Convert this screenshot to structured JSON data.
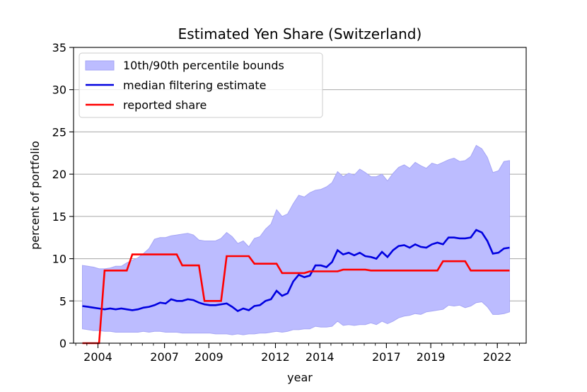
{
  "chart_data": {
    "type": "line",
    "title": "Estimated Yen Share (Switzerland)",
    "xlabel": "year",
    "ylabel": "percent of portfolio",
    "xlim": [
      2002.9,
      2023.3
    ],
    "ylim": [
      0,
      35
    ],
    "yticks": [
      0,
      5,
      10,
      15,
      20,
      25,
      30,
      35
    ],
    "xtick_values": [
      2004,
      2007,
      2009,
      2012,
      2014,
      2017,
      2019,
      2022
    ],
    "xtick_labels": [
      "2004",
      "2007",
      "2009",
      "2012",
      "2014",
      "2017",
      "2019",
      "2022"
    ],
    "grid": "horizontal",
    "legend_position": "top-left",
    "colors": {
      "band": "#bcbcff",
      "band_edge": "#a6a6f5",
      "median": "#0000e0",
      "reported": "#ff0000",
      "grid": "#b0b0b0"
    },
    "legend": [
      {
        "label": "10th/90th percentile bounds",
        "kind": "band"
      },
      {
        "label": "median filtering estimate",
        "kind": "median"
      },
      {
        "label": "reported share",
        "kind": "reported"
      }
    ],
    "series": [
      {
        "kind": "band",
        "x": [
          2003.3,
          2003.55,
          2003.8,
          2004.05,
          2004.3,
          2004.55,
          2004.8,
          2005.05,
          2005.3,
          2005.55,
          2005.8,
          2006.05,
          2006.3,
          2006.55,
          2006.8,
          2007.05,
          2007.3,
          2007.55,
          2007.8,
          2008.05,
          2008.3,
          2008.55,
          2008.8,
          2009.05,
          2009.3,
          2009.55,
          2009.8,
          2010.05,
          2010.3,
          2010.55,
          2010.8,
          2011.05,
          2011.3,
          2011.55,
          2011.8,
          2012.05,
          2012.3,
          2012.55,
          2012.8,
          2013.05,
          2013.3,
          2013.55,
          2013.8,
          2014.05,
          2014.3,
          2014.55,
          2014.8,
          2015.05,
          2015.3,
          2015.55,
          2015.8,
          2016.05,
          2016.3,
          2016.55,
          2016.8,
          2017.05,
          2017.3,
          2017.55,
          2017.8,
          2018.05,
          2018.3,
          2018.55,
          2018.8,
          2019.05,
          2019.3,
          2019.55,
          2019.8,
          2020.05,
          2020.3,
          2020.55,
          2020.8,
          2021.05,
          2021.3,
          2021.55,
          2021.8,
          2022.05,
          2022.3,
          2022.55
        ],
        "lower": [
          1.7,
          1.6,
          1.5,
          1.5,
          1.4,
          1.4,
          1.3,
          1.3,
          1.3,
          1.3,
          1.3,
          1.4,
          1.3,
          1.4,
          1.4,
          1.3,
          1.3,
          1.3,
          1.2,
          1.2,
          1.2,
          1.2,
          1.2,
          1.2,
          1.1,
          1.1,
          1.1,
          1.0,
          1.1,
          1.0,
          1.1,
          1.1,
          1.2,
          1.2,
          1.3,
          1.4,
          1.3,
          1.4,
          1.6,
          1.6,
          1.7,
          1.7,
          2.0,
          1.9,
          1.9,
          2.0,
          2.6,
          2.1,
          2.2,
          2.1,
          2.2,
          2.2,
          2.4,
          2.2,
          2.6,
          2.3,
          2.6,
          3.0,
          3.2,
          3.3,
          3.5,
          3.4,
          3.7,
          3.8,
          3.9,
          4.0,
          4.5,
          4.4,
          4.5,
          4.2,
          4.4,
          4.8,
          4.9,
          4.3,
          3.4,
          3.4,
          3.5,
          3.7
        ],
        "upper": [
          9.2,
          9.1,
          9.0,
          8.8,
          8.8,
          8.9,
          9.1,
          9.1,
          9.5,
          9.8,
          10.1,
          10.6,
          11.2,
          12.3,
          12.5,
          12.5,
          12.7,
          12.8,
          12.9,
          13.0,
          12.8,
          12.2,
          12.1,
          12.1,
          12.1,
          12.4,
          13.1,
          12.6,
          11.8,
          12.1,
          11.4,
          12.4,
          12.6,
          13.5,
          14.1,
          15.8,
          15.0,
          15.3,
          16.5,
          17.5,
          17.3,
          17.8,
          18.1,
          18.2,
          18.5,
          19.0,
          20.3,
          19.7,
          20.1,
          19.9,
          20.6,
          20.2,
          19.7,
          19.7,
          20.0,
          19.2,
          20.1,
          20.8,
          21.1,
          20.7,
          21.4,
          21.0,
          20.7,
          21.3,
          21.1,
          21.4,
          21.7,
          21.9,
          21.5,
          21.6,
          22.1,
          23.4,
          23.0,
          22.0,
          20.2,
          20.4,
          21.5,
          21.6
        ]
      },
      {
        "kind": "median",
        "name": "median filtering estimate",
        "x": [
          2003.3,
          2003.55,
          2003.8,
          2004.05,
          2004.3,
          2004.55,
          2004.8,
          2005.05,
          2005.3,
          2005.55,
          2005.8,
          2006.05,
          2006.3,
          2006.55,
          2006.8,
          2007.05,
          2007.3,
          2007.55,
          2007.8,
          2008.05,
          2008.3,
          2008.55,
          2008.8,
          2009.05,
          2009.3,
          2009.55,
          2009.8,
          2010.05,
          2010.3,
          2010.55,
          2010.8,
          2011.05,
          2011.3,
          2011.55,
          2011.8,
          2012.05,
          2012.3,
          2012.55,
          2012.8,
          2013.05,
          2013.3,
          2013.55,
          2013.8,
          2014.05,
          2014.3,
          2014.55,
          2014.8,
          2015.05,
          2015.3,
          2015.55,
          2015.8,
          2016.05,
          2016.3,
          2016.55,
          2016.8,
          2017.05,
          2017.3,
          2017.55,
          2017.8,
          2018.05,
          2018.3,
          2018.55,
          2018.8,
          2019.05,
          2019.3,
          2019.55,
          2019.8,
          2020.05,
          2020.3,
          2020.55,
          2020.8,
          2021.05,
          2021.3,
          2021.55,
          2021.8,
          2022.05,
          2022.3,
          2022.55
        ],
        "values": [
          4.4,
          4.3,
          4.2,
          4.1,
          4.0,
          4.1,
          4.0,
          4.1,
          4.0,
          3.9,
          4.0,
          4.2,
          4.3,
          4.5,
          4.8,
          4.7,
          5.2,
          5.0,
          5.0,
          5.2,
          5.1,
          4.8,
          4.6,
          4.5,
          4.5,
          4.6,
          4.7,
          4.3,
          3.8,
          4.1,
          3.9,
          4.4,
          4.5,
          5.0,
          5.2,
          6.2,
          5.6,
          5.9,
          7.3,
          8.1,
          7.8,
          8.0,
          9.2,
          9.2,
          9.0,
          9.6,
          11.0,
          10.5,
          10.7,
          10.4,
          10.7,
          10.3,
          10.2,
          10.0,
          10.8,
          10.2,
          11.0,
          11.5,
          11.6,
          11.3,
          11.7,
          11.4,
          11.3,
          11.7,
          11.9,
          11.7,
          12.5,
          12.5,
          12.4,
          12.4,
          12.5,
          13.4,
          13.1,
          12.1,
          10.6,
          10.7,
          11.2,
          11.3
        ]
      },
      {
        "kind": "reported",
        "name": "reported share",
        "x": [
          2003.3,
          2003.55,
          2003.8,
          2004.05,
          2004.3,
          2004.55,
          2004.8,
          2005.05,
          2005.3,
          2005.55,
          2005.8,
          2006.05,
          2006.3,
          2006.55,
          2006.8,
          2007.05,
          2007.3,
          2007.55,
          2007.8,
          2008.05,
          2008.3,
          2008.55,
          2008.8,
          2009.05,
          2009.3,
          2009.55,
          2009.8,
          2010.05,
          2010.3,
          2010.55,
          2010.8,
          2011.05,
          2011.3,
          2011.55,
          2011.8,
          2012.05,
          2012.3,
          2012.55,
          2012.8,
          2013.05,
          2013.3,
          2013.55,
          2013.8,
          2014.05,
          2014.3,
          2014.55,
          2014.8,
          2015.05,
          2015.3,
          2015.55,
          2015.8,
          2016.05,
          2016.3,
          2016.55,
          2016.8,
          2017.05,
          2017.3,
          2017.55,
          2017.8,
          2018.05,
          2018.3,
          2018.55,
          2018.8,
          2019.05,
          2019.3,
          2019.55,
          2019.8,
          2020.05,
          2020.3,
          2020.55,
          2020.8,
          2021.05,
          2021.3,
          2021.55,
          2021.8,
          2022.05,
          2022.3,
          2022.55
        ],
        "values": [
          0,
          0,
          0,
          0,
          8.6,
          8.6,
          8.6,
          8.6,
          8.6,
          10.5,
          10.5,
          10.5,
          10.5,
          10.5,
          10.5,
          10.5,
          10.5,
          10.5,
          9.2,
          9.2,
          9.2,
          9.2,
          5.0,
          5.0,
          5.0,
          5.0,
          10.3,
          10.3,
          10.3,
          10.3,
          10.3,
          9.4,
          9.4,
          9.4,
          9.4,
          9.4,
          8.3,
          8.3,
          8.3,
          8.3,
          8.3,
          8.5,
          8.5,
          8.5,
          8.5,
          8.5,
          8.5,
          8.7,
          8.7,
          8.7,
          8.7,
          8.7,
          8.6,
          8.6,
          8.6,
          8.6,
          8.6,
          8.6,
          8.6,
          8.6,
          8.6,
          8.6,
          8.6,
          8.6,
          8.6,
          9.7,
          9.7,
          9.7,
          9.7,
          9.7,
          8.6,
          8.6,
          8.6,
          8.6,
          8.6,
          8.6,
          8.6,
          8.6
        ]
      }
    ]
  }
}
